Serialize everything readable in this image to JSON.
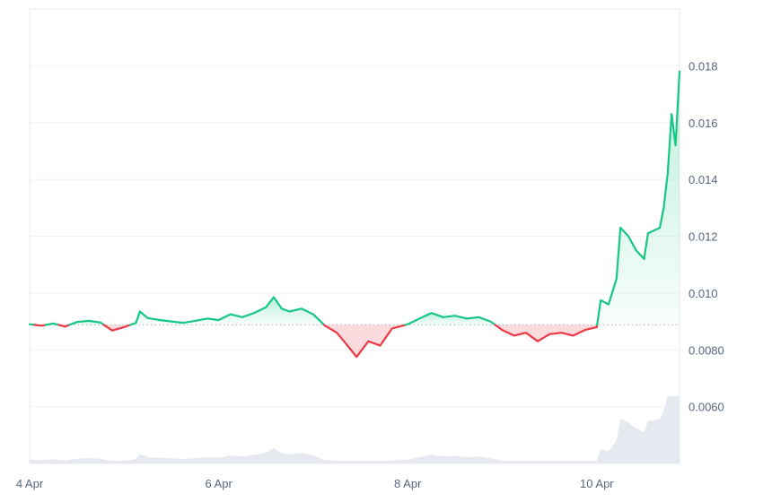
{
  "chart_data": {
    "type": "area",
    "title": "",
    "xlabel": "",
    "ylabel": "",
    "x_range": [
      "2024-04-04 00:00",
      "2024-04-10 21:00"
    ],
    "x_ticks": [
      {
        "label": "4 Apr",
        "date": "2024-04-04 00:00"
      },
      {
        "label": "6 Apr",
        "date": "2024-04-06 00:00"
      },
      {
        "label": "8 Apr",
        "date": "2024-04-08 00:00"
      },
      {
        "label": "10 Apr",
        "date": "2024-04-10 00:00"
      }
    ],
    "ylim": [
      0.004,
      0.02
    ],
    "y_ticks": [
      {
        "label": "0.0060",
        "value": 0.006
      },
      {
        "label": "0.0080",
        "value": 0.008
      },
      {
        "label": "0.010",
        "value": 0.01
      },
      {
        "label": "0.012",
        "value": 0.012
      },
      {
        "label": "0.014",
        "value": 0.014
      },
      {
        "label": "0.016",
        "value": 0.016
      },
      {
        "label": "0.018",
        "value": 0.018
      }
    ],
    "baseline": 0.00888,
    "grid": true,
    "colors": {
      "up": "#16c784",
      "down": "#ea3943",
      "grid": "#eff2f5",
      "baseline": "#a6b0c3",
      "volume": "#dfe3ea",
      "axis_text": "#58667e"
    },
    "series": [
      {
        "values": [
          [
            "2024-04-04 00:00",
            0.0089
          ],
          [
            "2024-04-04 03:00",
            0.00885
          ],
          [
            "2024-04-04 06:00",
            0.00893
          ],
          [
            "2024-04-04 09:00",
            0.00882
          ],
          [
            "2024-04-04 12:00",
            0.00898
          ],
          [
            "2024-04-04 15:00",
            0.00902
          ],
          [
            "2024-04-04 18:00",
            0.00896
          ],
          [
            "2024-04-04 21:00",
            0.00868
          ],
          [
            "2024-04-05 00:00",
            0.0088
          ],
          [
            "2024-04-05 03:00",
            0.00895
          ],
          [
            "2024-04-05 04:00",
            0.00935
          ],
          [
            "2024-04-05 06:00",
            0.00912
          ],
          [
            "2024-04-05 09:00",
            0.00905
          ],
          [
            "2024-04-05 12:00",
            0.009
          ],
          [
            "2024-04-05 15:00",
            0.00895
          ],
          [
            "2024-04-05 18:00",
            0.00902
          ],
          [
            "2024-04-05 21:00",
            0.0091
          ],
          [
            "2024-04-06 00:00",
            0.00905
          ],
          [
            "2024-04-06 03:00",
            0.00925
          ],
          [
            "2024-04-06 06:00",
            0.00915
          ],
          [
            "2024-04-06 09:00",
            0.0093
          ],
          [
            "2024-04-06 12:00",
            0.0095
          ],
          [
            "2024-04-06 14:00",
            0.00985
          ],
          [
            "2024-04-06 16:00",
            0.00945
          ],
          [
            "2024-04-06 18:00",
            0.00935
          ],
          [
            "2024-04-06 21:00",
            0.00945
          ],
          [
            "2024-04-07 00:00",
            0.00925
          ],
          [
            "2024-04-07 03:00",
            0.00885
          ],
          [
            "2024-04-07 06:00",
            0.0086
          ],
          [
            "2024-04-07 09:00",
            0.0081
          ],
          [
            "2024-04-07 11:00",
            0.00775
          ],
          [
            "2024-04-07 14:00",
            0.0083
          ],
          [
            "2024-04-07 17:00",
            0.00815
          ],
          [
            "2024-04-07 20:00",
            0.00875
          ],
          [
            "2024-04-08 00:00",
            0.0089
          ],
          [
            "2024-04-08 03:00",
            0.0091
          ],
          [
            "2024-04-08 06:00",
            0.0093
          ],
          [
            "2024-04-08 09:00",
            0.00915
          ],
          [
            "2024-04-08 12:00",
            0.0092
          ],
          [
            "2024-04-08 15:00",
            0.0091
          ],
          [
            "2024-04-08 18:00",
            0.00915
          ],
          [
            "2024-04-08 21:00",
            0.009
          ],
          [
            "2024-04-09 00:00",
            0.0087
          ],
          [
            "2024-04-09 03:00",
            0.0085
          ],
          [
            "2024-04-09 06:00",
            0.0086
          ],
          [
            "2024-04-09 09:00",
            0.0083
          ],
          [
            "2024-04-09 12:00",
            0.00855
          ],
          [
            "2024-04-09 15:00",
            0.0086
          ],
          [
            "2024-04-09 18:00",
            0.0085
          ],
          [
            "2024-04-09 21:00",
            0.0087
          ],
          [
            "2024-04-10 00:00",
            0.0088
          ],
          [
            "2024-04-10 01:00",
            0.00975
          ],
          [
            "2024-04-10 03:00",
            0.0096
          ],
          [
            "2024-04-10 05:00",
            0.0105
          ],
          [
            "2024-04-10 06:00",
            0.0123
          ],
          [
            "2024-04-10 08:00",
            0.012
          ],
          [
            "2024-04-10 10:00",
            0.0115
          ],
          [
            "2024-04-10 12:00",
            0.0112
          ],
          [
            "2024-04-10 13:00",
            0.0121
          ],
          [
            "2024-04-10 16:00",
            0.0123
          ],
          [
            "2024-04-10 17:00",
            0.013
          ],
          [
            "2024-04-10 18:00",
            0.0142
          ],
          [
            "2024-04-10 19:00",
            0.0163
          ],
          [
            "2024-04-10 20:00",
            0.0152
          ],
          [
            "2024-04-10 21:00",
            0.0178
          ]
        ]
      }
    ]
  }
}
